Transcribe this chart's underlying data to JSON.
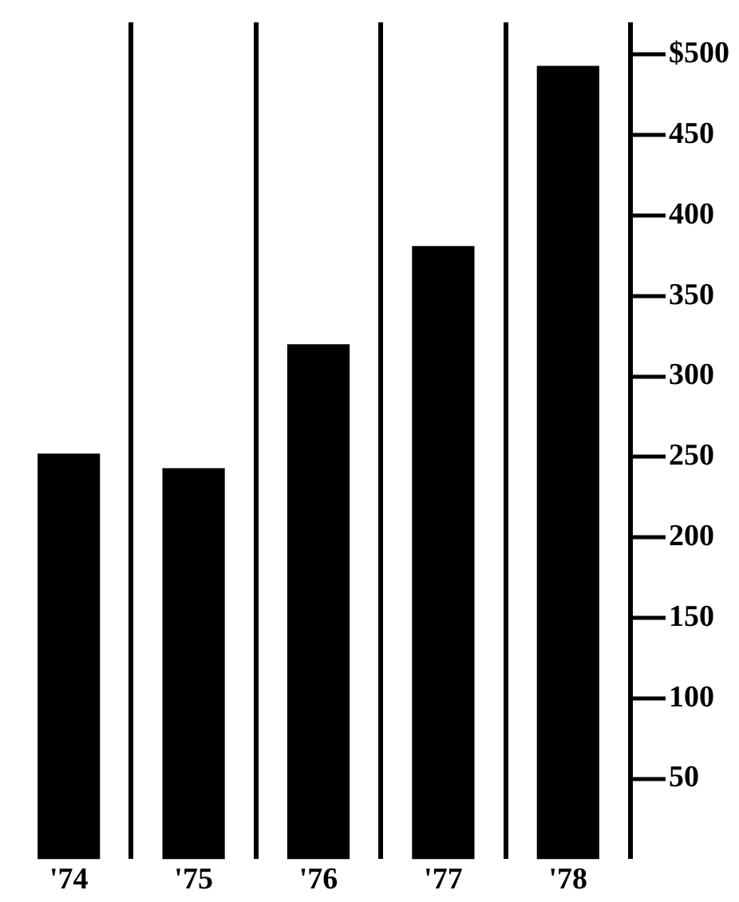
{
  "chart_data": {
    "type": "bar",
    "categories": [
      "'74",
      "'75",
      "'76",
      "'77",
      "'78"
    ],
    "values": [
      252,
      243,
      320,
      381,
      493
    ],
    "color": "#000000",
    "ylim": [
      0,
      520
    ],
    "yticks": [
      {
        "value": 50,
        "label": "50"
      },
      100,
      150,
      200,
      250,
      300,
      350,
      400,
      450,
      {
        "value": 500,
        "label": "$500"
      }
    ],
    "grid": "x",
    "legend": false
  }
}
